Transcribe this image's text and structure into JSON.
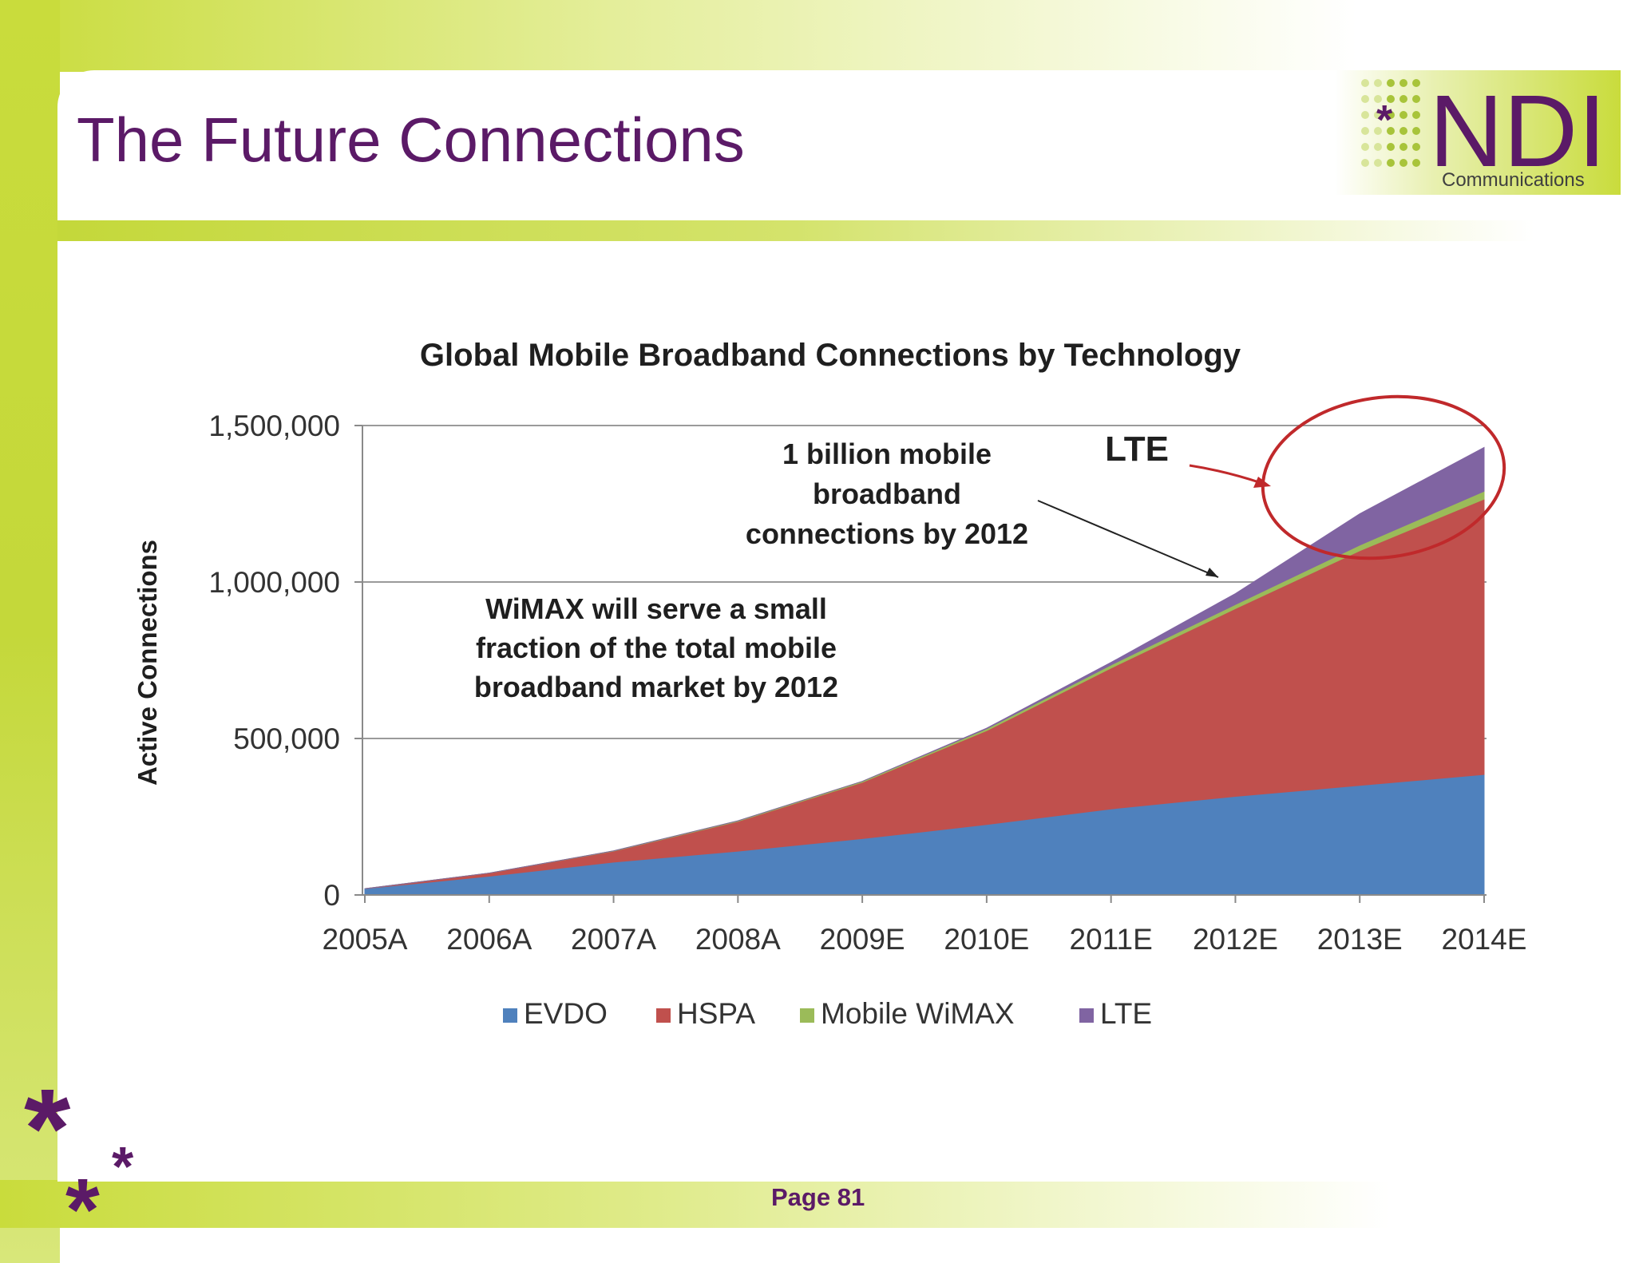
{
  "slide": {
    "title": "The Future Connections",
    "page_label": "Page 81"
  },
  "logo": {
    "wordmark": "NDI",
    "tagline": "Communications",
    "star": "*"
  },
  "colors": {
    "frame_green": "#c9dc3c",
    "title_purple": "#5b1a67",
    "evdo": "#4f81bd",
    "hspa": "#c0504d",
    "wimax": "#9bbb59",
    "lte": "#8064a2",
    "highlight_circle": "#c0292b"
  },
  "chart_data": {
    "type": "area",
    "stacked": true,
    "title": "Global Mobile Broadband Connections by Technology",
    "xlabel": "",
    "ylabel": "Active Connections",
    "ylim": [
      0,
      1500000
    ],
    "yticks": [
      0,
      500000,
      1000000,
      1500000
    ],
    "ytick_labels": [
      "0",
      "500,000",
      "1,000,000",
      "1,500,000"
    ],
    "grid": true,
    "legend_position": "bottom",
    "categories": [
      "2005A",
      "2006A",
      "2007A",
      "2008A",
      "2009E",
      "2010E",
      "2011E",
      "2012E",
      "2013E",
      "2014E"
    ],
    "series": [
      {
        "name": "EVDO",
        "color": "#4f81bd",
        "values": [
          20000,
          60000,
          105000,
          140000,
          180000,
          225000,
          275000,
          315000,
          350000,
          385000
        ]
      },
      {
        "name": "HSPA",
        "color": "#c0504d",
        "values": [
          0,
          10000,
          35000,
          95000,
          180000,
          300000,
          450000,
          600000,
          750000,
          880000
        ]
      },
      {
        "name": "Mobile WiMAX",
        "color": "#9bbb59",
        "values": [
          0,
          0,
          1000,
          2000,
          3000,
          6000,
          10000,
          13000,
          18000,
          25000
        ]
      },
      {
        "name": "LTE",
        "color": "#8064a2",
        "values": [
          0,
          0,
          0,
          0,
          0,
          2000,
          8000,
          35000,
          100000,
          140000
        ]
      }
    ],
    "annotations": {
      "lte_label": "LTE",
      "billion_line1": "1 billion mobile",
      "billion_line2": "broadband",
      "billion_line3": "connections by 2012",
      "wimax_line1": "WiMAX will serve a small",
      "wimax_line2": "fraction of the total mobile",
      "wimax_line3": "broadband market by 2012"
    }
  }
}
